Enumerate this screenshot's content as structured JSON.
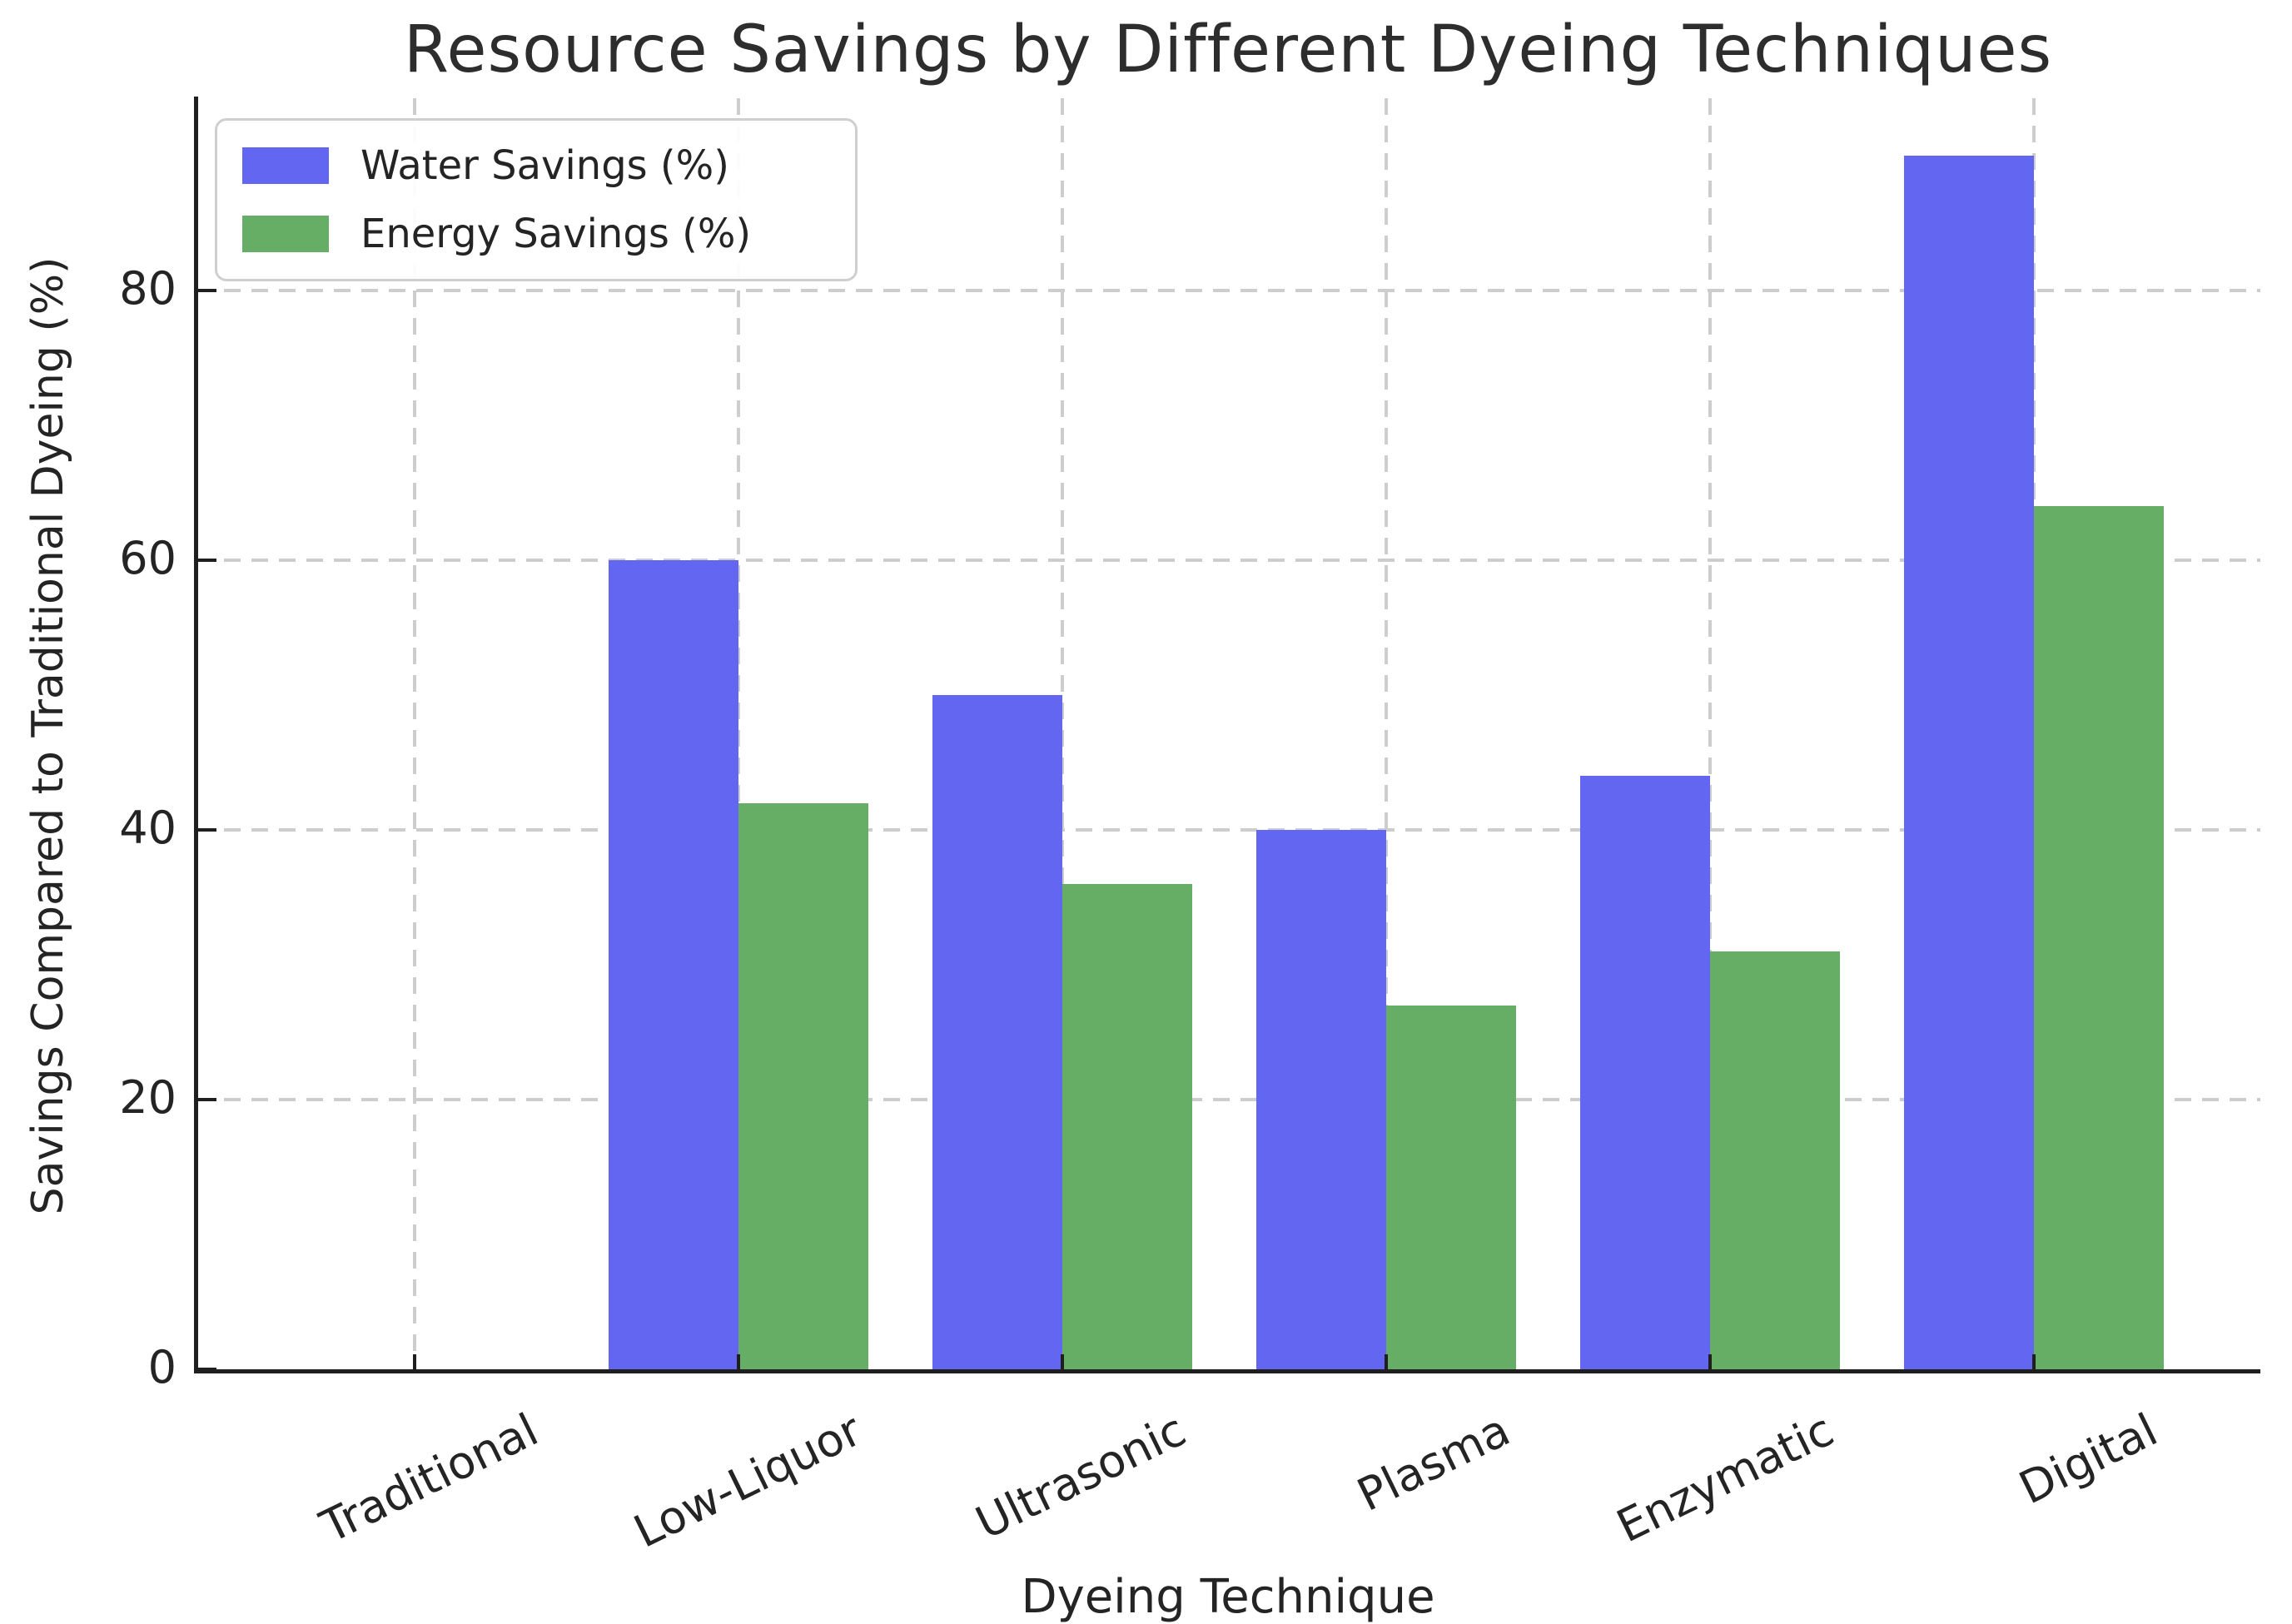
{
  "title": "Resource Savings by Different Dyeing Techniques",
  "axes": {
    "ylabel": "Savings Compared to Traditional Dyeing (%)",
    "xlabel": "Dyeing Technique"
  },
  "legend": {
    "items": [
      {
        "label": "Water Savings (%)",
        "color": "#6266f0"
      },
      {
        "label": "Energy Savings (%)",
        "color": "#66ad66"
      }
    ]
  },
  "colors": {
    "water": "#6266f0",
    "energy": "#66ad66",
    "grid": "#cdcdcd",
    "spine": "#1f1f1f",
    "text": "#242424"
  },
  "chart_data": {
    "type": "bar",
    "title": "Resource Savings by Different Dyeing Techniques",
    "xlabel": "Dyeing Technique",
    "ylabel": "Savings Compared to Traditional Dyeing (%)",
    "categories": [
      "Traditional",
      "Low-Liquor",
      "Ultrasonic",
      "Plasma",
      "Enzymatic",
      "Digital"
    ],
    "series": [
      {
        "name": "Water Savings (%)",
        "color": "#6266f0",
        "values": [
          0,
          60,
          50,
          40,
          44,
          90
        ]
      },
      {
        "name": "Energy Savings (%)",
        "color": "#66ad66",
        "values": [
          0,
          42,
          36,
          27,
          31,
          64
        ]
      }
    ],
    "yticks": [
      0,
      20,
      40,
      60,
      80
    ],
    "ylim": [
      0,
      94
    ],
    "grid": "dashed, horizontal at yticks and vertical at category centers",
    "legend_position": "upper left"
  }
}
